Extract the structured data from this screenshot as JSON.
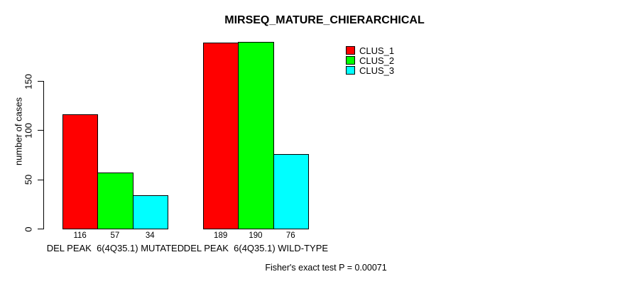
{
  "chart_data": {
    "type": "bar",
    "title": "MIRSEQ_MATURE_CHIERARCHICAL",
    "xlabel": "",
    "ylabel": "number of cases",
    "annotation": "Fisher's exact test P = 0.00071",
    "yticks": [
      0,
      50,
      100,
      150
    ],
    "ylim": [
      0,
      190
    ],
    "grid": false,
    "legend_position": "top-right",
    "bar_value_labels_shown": true,
    "categories": [
      "DEL PEAK  6(4Q35.1) MUTATED",
      "DEL PEAK  6(4Q35.1) WILD-TYPE"
    ],
    "series": [
      {
        "name": "CLUS_1",
        "color": "#FF0000",
        "values": [
          116,
          189
        ]
      },
      {
        "name": "CLUS_2",
        "color": "#00FF00",
        "values": [
          57,
          190
        ]
      },
      {
        "name": "CLUS_3",
        "color": "#00FFFF",
        "values": [
          34,
          76
        ]
      }
    ],
    "axis_color": "#000000",
    "background_color": "#FFFFFF"
  }
}
